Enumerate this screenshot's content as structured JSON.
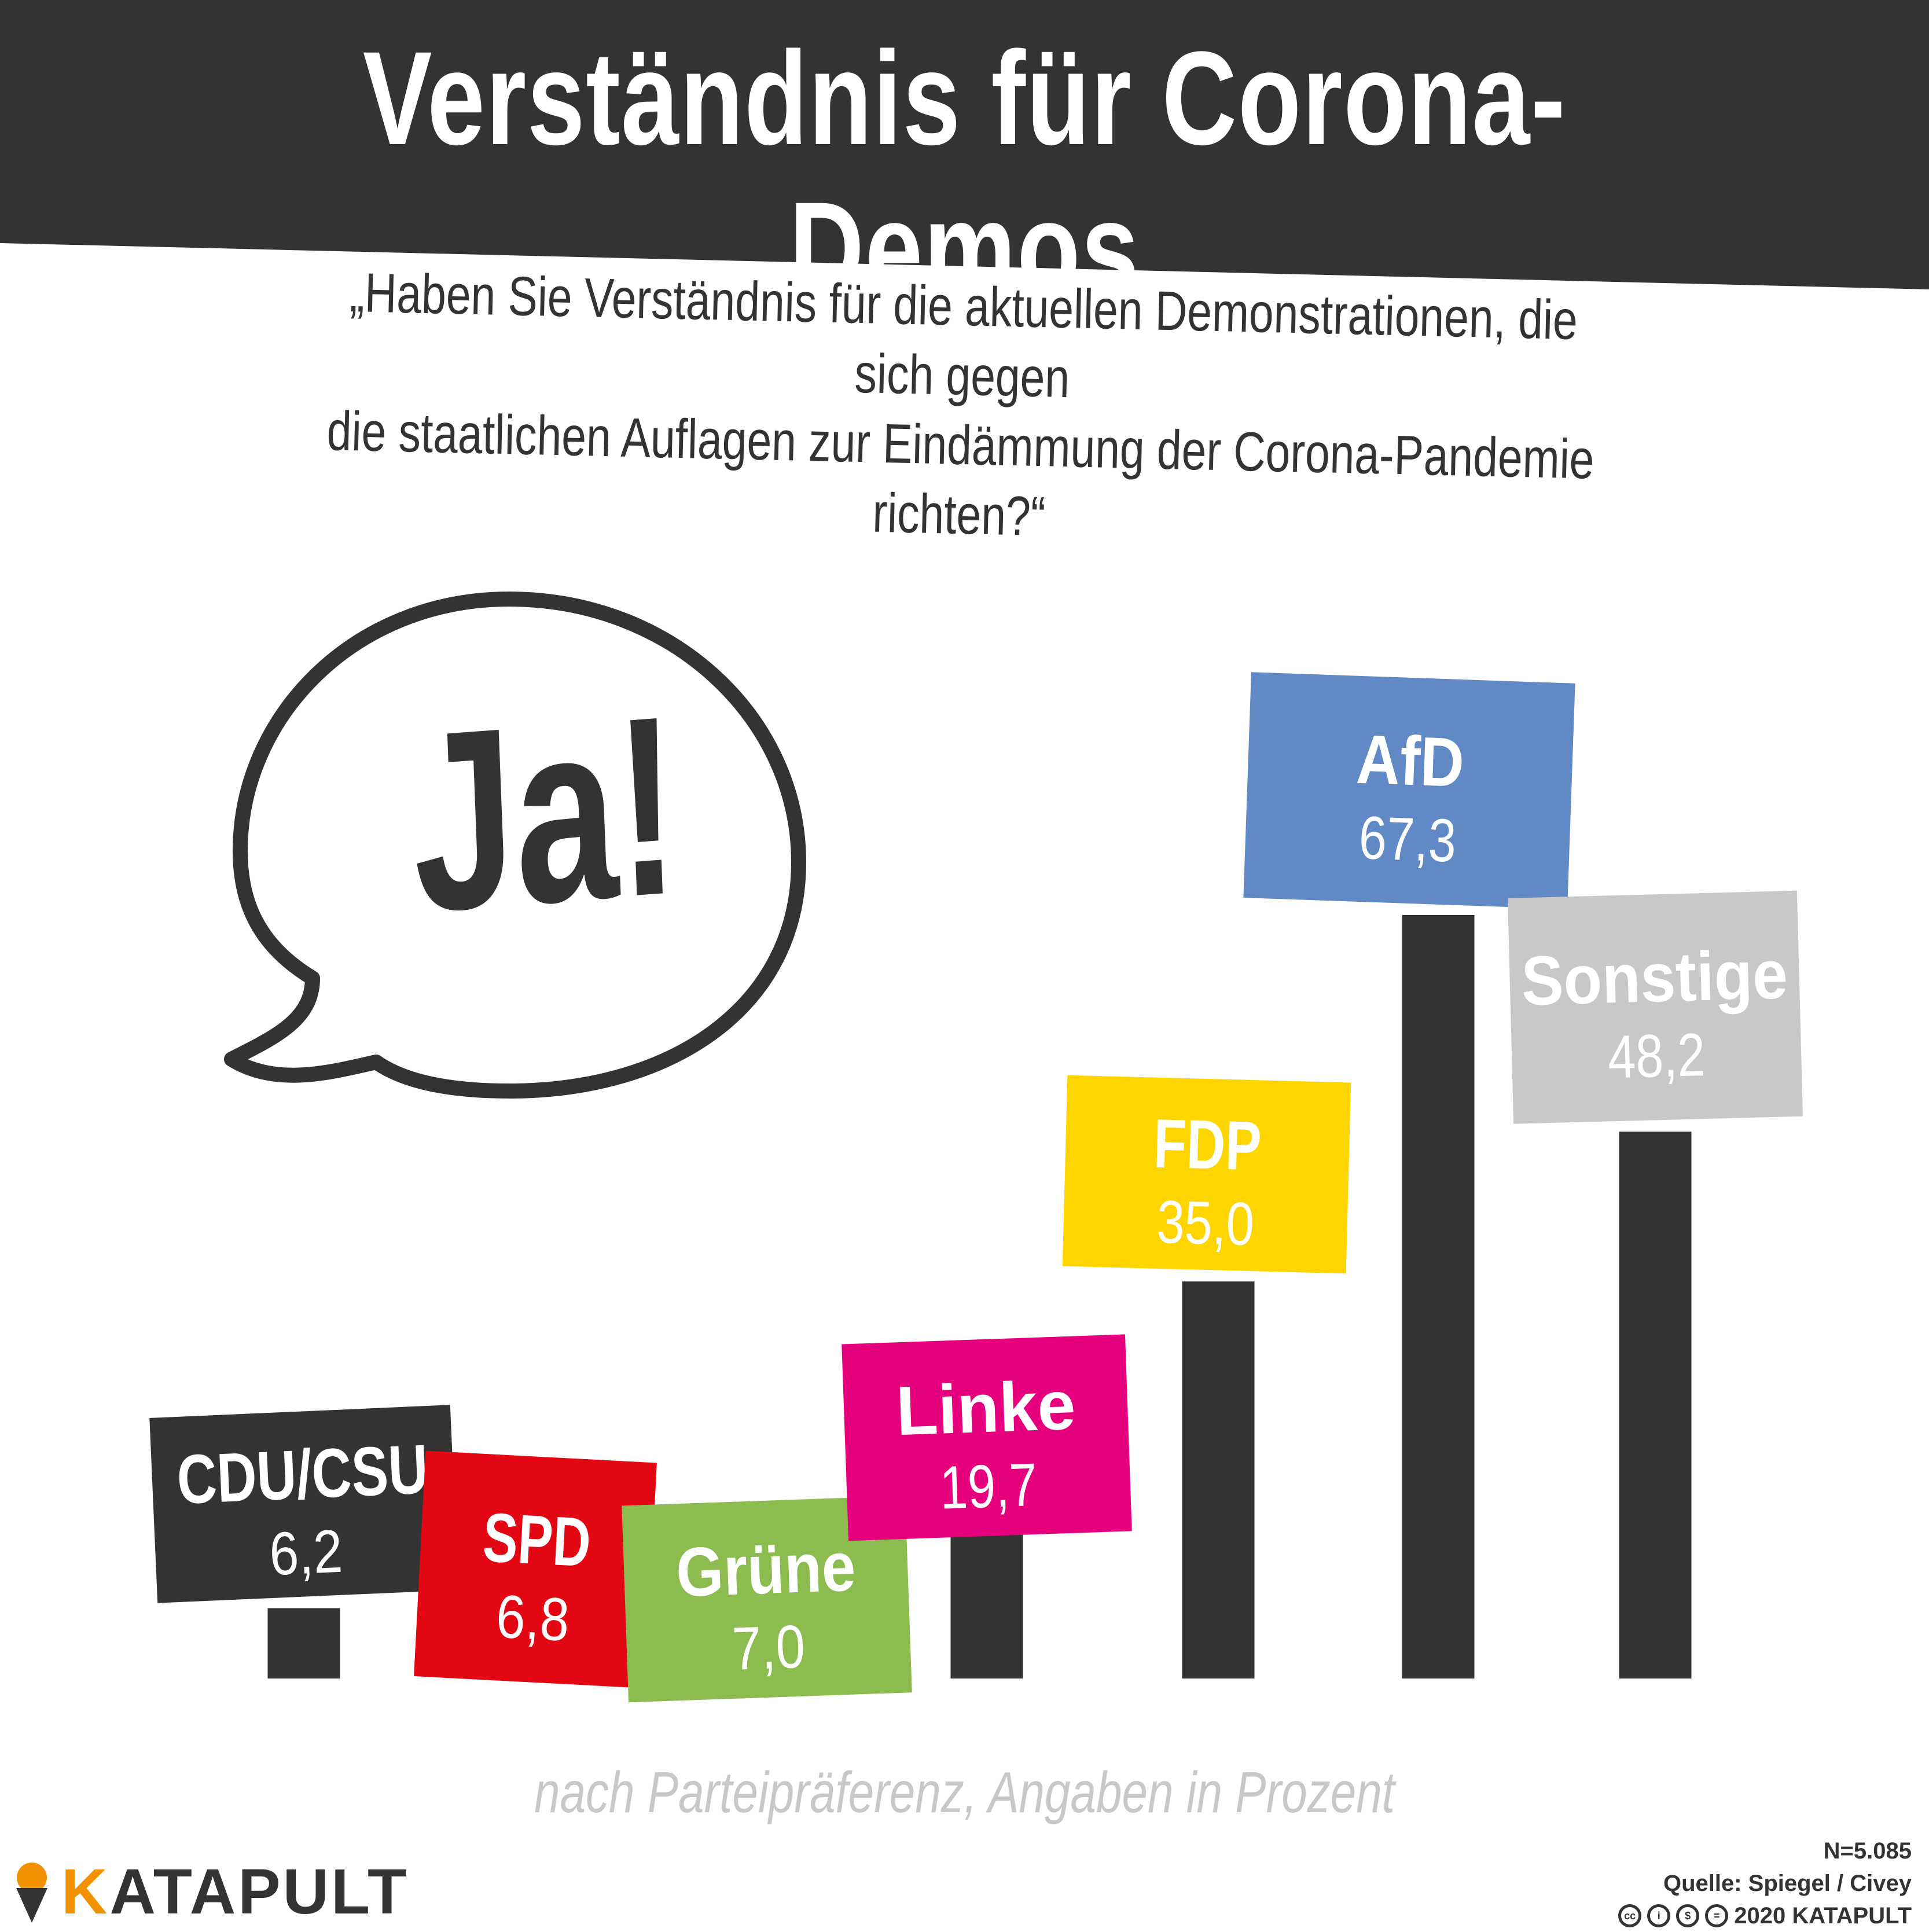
{
  "title": "Verständnis für Corona-Demos",
  "question": "„Haben Sie Verständnis für die aktuellen Demonstrationen, die sich gegen\ndie staatlichen Auflagen zur Eindämmung der Corona-Pandemie richten?“",
  "bubble_text": "Ja!",
  "subtitle": "nach Parteipräferenz, Angaben in Prozent",
  "footer": {
    "n": "N=5.085",
    "source": "Quelle: Spiegel / Civey",
    "license": "2020 KATAPULT",
    "license_icons": [
      "cc-icon",
      "by-icon",
      "nc-icon",
      "nd-icon"
    ]
  },
  "logo": {
    "text_accent": "K",
    "text_rest": "ATAPULT",
    "icon": "ice-cream-cone-icon"
  },
  "colors": {
    "dark": "#333333",
    "CDU/CSU": "#333333",
    "SPD": "#e30613",
    "Grüne": "#8cbb4f",
    "Linke": "#e6007e",
    "FDP": "#ffd500",
    "AfD": "#6089c6",
    "Sonstige": "#c6c8ca",
    "logo_accent": "#f39200"
  },
  "chart_data": {
    "type": "bar",
    "categories": [
      "CDU/CSU",
      "SPD",
      "Grüne",
      "Linke",
      "FDP",
      "AfD",
      "Sonstige"
    ],
    "values": [
      6.2,
      6.8,
      7.0,
      19.7,
      35.0,
      67.3,
      48.2
    ],
    "value_labels": [
      "6,2",
      "6,8",
      "7,0",
      "19,7",
      "35,0",
      "67,3",
      "48,2"
    ],
    "title": "Verständnis für Corona-Demos",
    "subtitle": "nach Parteipräferenz, Angaben in Prozent",
    "ylim": [
      0,
      100
    ],
    "grid": false,
    "legend": "none"
  }
}
